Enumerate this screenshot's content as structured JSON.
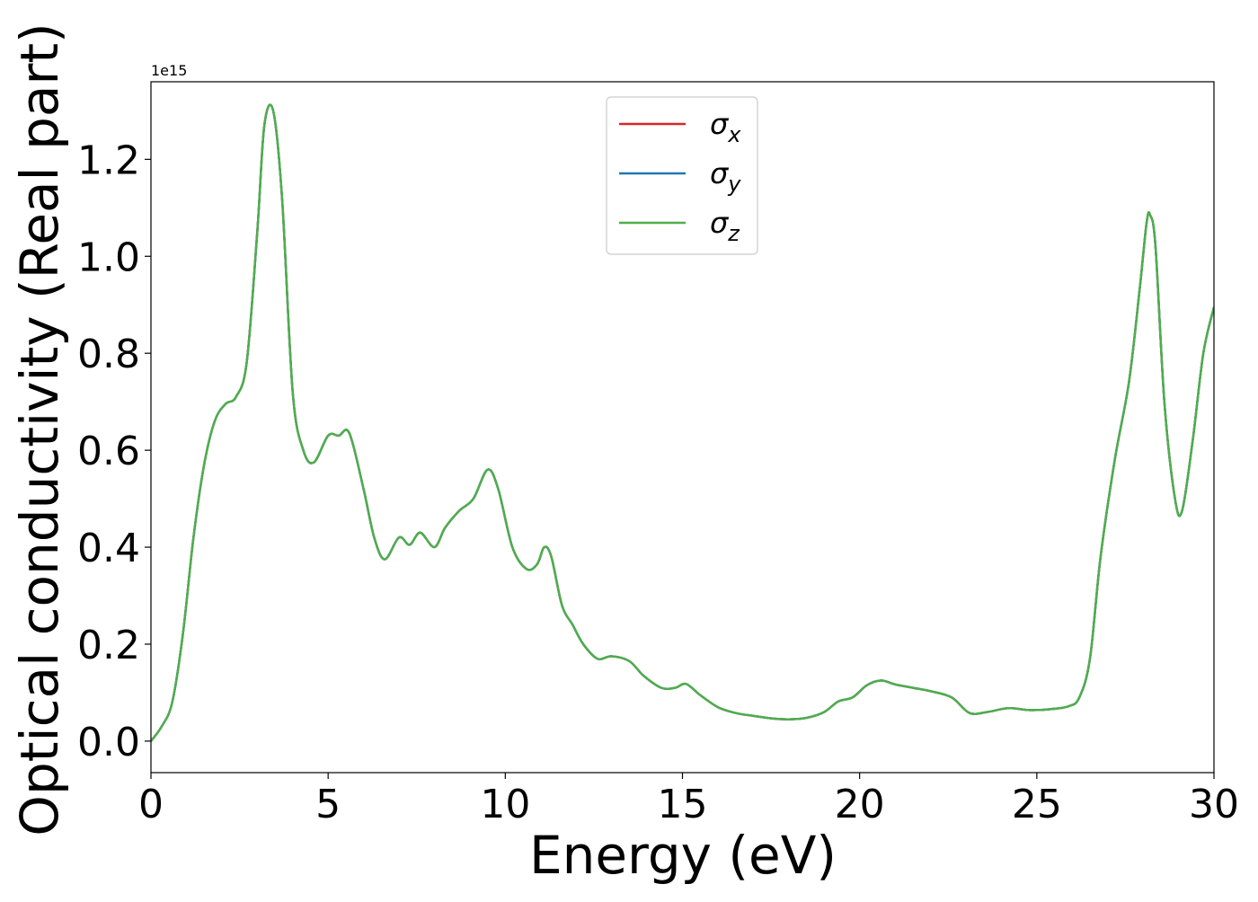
{
  "chart_data": {
    "type": "line",
    "xlabel": "Energy (eV)",
    "ylabel": "Optical conductivity (Real part)",
    "y_offset_text": "1e15",
    "xlim": [
      0,
      30
    ],
    "ylim": [
      -0.065,
      1.36
    ],
    "y_scale_note": "values in units of 1e15",
    "x_ticks": [
      0,
      5,
      10,
      15,
      20,
      25,
      30
    ],
    "x_tick_labels": [
      "0",
      "5",
      "10",
      "15",
      "20",
      "25",
      "30"
    ],
    "y_ticks": [
      0.0,
      0.2,
      0.4,
      0.6,
      0.8,
      1.0,
      1.2
    ],
    "y_tick_labels": [
      "0.0",
      "0.2",
      "0.4",
      "0.6",
      "0.8",
      "1.0",
      "1.2"
    ],
    "grid": false,
    "legend_position": "top-center",
    "x": [
      0,
      0.3,
      0.6,
      0.9,
      1.2,
      1.5,
      1.8,
      2.1,
      2.4,
      2.7,
      3.0,
      3.2,
      3.45,
      3.7,
      4.0,
      4.3,
      4.6,
      5.0,
      5.3,
      5.6,
      6.0,
      6.3,
      6.6,
      7.0,
      7.3,
      7.6,
      8.0,
      8.3,
      8.7,
      9.1,
      9.5,
      9.8,
      10.2,
      10.6,
      10.9,
      11.1,
      11.3,
      11.6,
      11.9,
      12.2,
      12.6,
      13.0,
      13.5,
      13.9,
      14.4,
      14.8,
      15.1,
      15.5,
      16.0,
      16.5,
      17.0,
      17.5,
      18.0,
      18.5,
      19.0,
      19.4,
      19.8,
      20.2,
      20.6,
      21.0,
      21.5,
      22.0,
      22.6,
      23.1,
      23.6,
      24.2,
      24.8,
      25.4,
      25.9,
      26.2,
      26.5,
      26.8,
      27.2,
      27.6,
      27.9,
      28.1,
      28.2,
      28.35,
      28.6,
      28.9,
      29.1,
      29.4,
      29.7,
      30.0
    ],
    "series": [
      {
        "name": "σx",
        "color": "#d62728",
        "values": [
          0.0,
          0.03,
          0.08,
          0.22,
          0.42,
          0.57,
          0.66,
          0.695,
          0.71,
          0.78,
          1.05,
          1.27,
          1.3,
          1.12,
          0.72,
          0.6,
          0.575,
          0.63,
          0.63,
          0.635,
          0.52,
          0.42,
          0.375,
          0.42,
          0.405,
          0.43,
          0.4,
          0.44,
          0.475,
          0.5,
          0.56,
          0.52,
          0.4,
          0.355,
          0.365,
          0.4,
          0.38,
          0.28,
          0.24,
          0.2,
          0.17,
          0.175,
          0.165,
          0.135,
          0.11,
          0.11,
          0.118,
          0.095,
          0.07,
          0.058,
          0.052,
          0.047,
          0.045,
          0.048,
          0.06,
          0.082,
          0.09,
          0.115,
          0.125,
          0.117,
          0.11,
          0.103,
          0.09,
          0.058,
          0.06,
          0.068,
          0.064,
          0.066,
          0.072,
          0.09,
          0.17,
          0.38,
          0.58,
          0.74,
          0.93,
          1.07,
          1.085,
          1.02,
          0.7,
          0.5,
          0.475,
          0.62,
          0.8,
          0.895
        ]
      },
      {
        "name": "σy",
        "color": "#1f77b4",
        "values": [
          0.0,
          0.03,
          0.08,
          0.22,
          0.42,
          0.57,
          0.66,
          0.695,
          0.71,
          0.78,
          1.05,
          1.27,
          1.3,
          1.12,
          0.72,
          0.6,
          0.575,
          0.63,
          0.63,
          0.635,
          0.52,
          0.42,
          0.375,
          0.42,
          0.405,
          0.43,
          0.4,
          0.44,
          0.475,
          0.5,
          0.56,
          0.52,
          0.4,
          0.355,
          0.365,
          0.4,
          0.38,
          0.28,
          0.24,
          0.2,
          0.17,
          0.175,
          0.165,
          0.135,
          0.11,
          0.11,
          0.118,
          0.095,
          0.07,
          0.058,
          0.052,
          0.047,
          0.045,
          0.048,
          0.06,
          0.082,
          0.09,
          0.115,
          0.125,
          0.117,
          0.11,
          0.103,
          0.09,
          0.058,
          0.06,
          0.068,
          0.064,
          0.066,
          0.072,
          0.09,
          0.17,
          0.38,
          0.58,
          0.74,
          0.93,
          1.07,
          1.085,
          1.02,
          0.7,
          0.5,
          0.475,
          0.62,
          0.8,
          0.895
        ]
      },
      {
        "name": "σz",
        "color": "#4daf4a",
        "values": [
          0.0,
          0.03,
          0.08,
          0.22,
          0.42,
          0.57,
          0.66,
          0.695,
          0.71,
          0.78,
          1.05,
          1.27,
          1.3,
          1.12,
          0.72,
          0.6,
          0.575,
          0.63,
          0.63,
          0.635,
          0.52,
          0.42,
          0.375,
          0.42,
          0.405,
          0.43,
          0.4,
          0.44,
          0.475,
          0.5,
          0.56,
          0.52,
          0.4,
          0.355,
          0.365,
          0.4,
          0.38,
          0.28,
          0.24,
          0.2,
          0.17,
          0.175,
          0.165,
          0.135,
          0.11,
          0.11,
          0.118,
          0.095,
          0.07,
          0.058,
          0.052,
          0.047,
          0.045,
          0.048,
          0.06,
          0.082,
          0.09,
          0.115,
          0.125,
          0.117,
          0.11,
          0.103,
          0.09,
          0.058,
          0.06,
          0.068,
          0.064,
          0.066,
          0.072,
          0.09,
          0.17,
          0.38,
          0.58,
          0.74,
          0.93,
          1.07,
          1.085,
          1.02,
          0.7,
          0.5,
          0.475,
          0.62,
          0.8,
          0.895
        ]
      }
    ],
    "legend": [
      {
        "symbol": "σ",
        "sub": "x",
        "color": "#d62728"
      },
      {
        "symbol": "σ",
        "sub": "y",
        "color": "#1f77b4"
      },
      {
        "symbol": "σ",
        "sub": "z",
        "color": "#4daf4a"
      }
    ]
  }
}
